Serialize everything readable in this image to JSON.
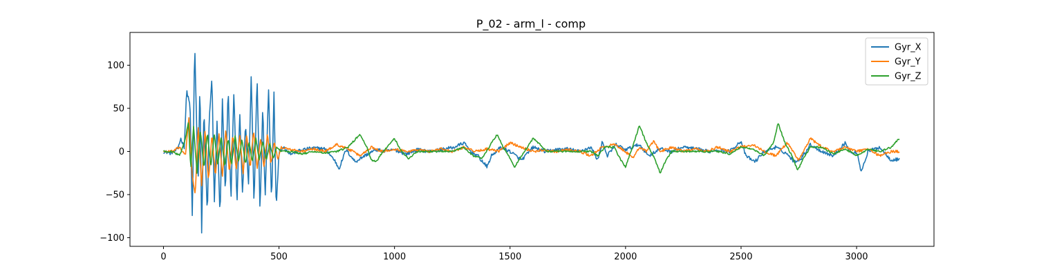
{
  "chart_data": {
    "type": "line",
    "title": "P_02 - arm_l - comp",
    "xlabel": "",
    "ylabel": "",
    "xlim": [
      -145,
      3335
    ],
    "ylim": [
      -110,
      138
    ],
    "xticks": [
      0,
      500,
      1000,
      1500,
      2000,
      2500,
      3000
    ],
    "yticks": [
      -100,
      -50,
      0,
      50,
      100
    ],
    "yticklabels": [
      "−100",
      "−50",
      "0",
      "50",
      "100"
    ],
    "grid": false,
    "legend": "top-right",
    "n_points": 3190,
    "colors": {
      "Gyr_X": "#1f77b4",
      "Gyr_Y": "#ff7f0e",
      "Gyr_Z": "#2ca02c"
    },
    "series": [
      {
        "name": "Gyr_X",
        "color": "#1f77b4",
        "points": [
          [
            0,
            0
          ],
          [
            30,
            -2
          ],
          [
            60,
            2
          ],
          [
            75,
            15
          ],
          [
            90,
            5
          ],
          [
            100,
            70
          ],
          [
            115,
            55
          ],
          [
            125,
            -80
          ],
          [
            135,
            126
          ],
          [
            150,
            -40
          ],
          [
            158,
            88
          ],
          [
            165,
            -98
          ],
          [
            175,
            50
          ],
          [
            190,
            -75
          ],
          [
            198,
            40
          ],
          [
            210,
            85
          ],
          [
            220,
            -60
          ],
          [
            232,
            35
          ],
          [
            245,
            -78
          ],
          [
            255,
            60
          ],
          [
            268,
            -50
          ],
          [
            280,
            75
          ],
          [
            292,
            -58
          ],
          [
            305,
            72
          ],
          [
            318,
            -62
          ],
          [
            330,
            45
          ],
          [
            342,
            -48
          ],
          [
            355,
            32
          ],
          [
            368,
            -40
          ],
          [
            380,
            90
          ],
          [
            392,
            -65
          ],
          [
            405,
            88
          ],
          [
            418,
            -70
          ],
          [
            430,
            55
          ],
          [
            440,
            -55
          ],
          [
            455,
            72
          ],
          [
            468,
            -60
          ],
          [
            478,
            70
          ],
          [
            488,
            -66
          ],
          [
            500,
            0
          ],
          [
            520,
            5
          ],
          [
            550,
            -3
          ],
          [
            600,
            2
          ],
          [
            650,
            4
          ],
          [
            700,
            3
          ],
          [
            740,
            -10
          ],
          [
            760,
            -20
          ],
          [
            790,
            2
          ],
          [
            830,
            -12
          ],
          [
            870,
            -5
          ],
          [
            920,
            2
          ],
          [
            960,
            0
          ],
          [
            1000,
            2
          ],
          [
            1050,
            -3
          ],
          [
            1100,
            2
          ],
          [
            1150,
            0
          ],
          [
            1200,
            2
          ],
          [
            1260,
            5
          ],
          [
            1300,
            10
          ],
          [
            1330,
            0
          ],
          [
            1360,
            -5
          ],
          [
            1400,
            -18
          ],
          [
            1420,
            -5
          ],
          [
            1460,
            5
          ],
          [
            1500,
            0
          ],
          [
            1550,
            -10
          ],
          [
            1600,
            5
          ],
          [
            1650,
            0
          ],
          [
            1700,
            2
          ],
          [
            1750,
            3
          ],
          [
            1800,
            0
          ],
          [
            1850,
            5
          ],
          [
            1880,
            -10
          ],
          [
            1900,
            12
          ],
          [
            1920,
            -5
          ],
          [
            1960,
            8
          ],
          [
            2000,
            2
          ],
          [
            2060,
            8
          ],
          [
            2100,
            -5
          ],
          [
            2150,
            3
          ],
          [
            2200,
            0
          ],
          [
            2250,
            5
          ],
          [
            2300,
            3
          ],
          [
            2360,
            0
          ],
          [
            2400,
            2
          ],
          [
            2450,
            0
          ],
          [
            2500,
            12
          ],
          [
            2520,
            -5
          ],
          [
            2560,
            -12
          ],
          [
            2600,
            0
          ],
          [
            2650,
            5
          ],
          [
            2700,
            -3
          ],
          [
            2730,
            -12
          ],
          [
            2760,
            -8
          ],
          [
            2800,
            8
          ],
          [
            2850,
            0
          ],
          [
            2900,
            -5
          ],
          [
            2950,
            10
          ],
          [
            2980,
            -3
          ],
          [
            3000,
            0
          ],
          [
            3020,
            -23
          ],
          [
            3050,
            0
          ],
          [
            3100,
            5
          ],
          [
            3150,
            -10
          ],
          [
            3185,
            -9
          ]
        ]
      },
      {
        "name": "Gyr_Y",
        "color": "#ff7f0e",
        "points": [
          [
            0,
            0
          ],
          [
            40,
            0
          ],
          [
            70,
            5
          ],
          [
            95,
            -5
          ],
          [
            110,
            40
          ],
          [
            125,
            -30
          ],
          [
            138,
            -50
          ],
          [
            150,
            30
          ],
          [
            165,
            -40
          ],
          [
            180,
            25
          ],
          [
            195,
            -35
          ],
          [
            210,
            20
          ],
          [
            225,
            -30
          ],
          [
            240,
            22
          ],
          [
            255,
            -28
          ],
          [
            270,
            25
          ],
          [
            285,
            -25
          ],
          [
            300,
            20
          ],
          [
            315,
            -22
          ],
          [
            330,
            18
          ],
          [
            345,
            -25
          ],
          [
            360,
            20
          ],
          [
            375,
            -20
          ],
          [
            390,
            25
          ],
          [
            405,
            -20
          ],
          [
            420,
            15
          ],
          [
            435,
            -18
          ],
          [
            450,
            20
          ],
          [
            465,
            -15
          ],
          [
            480,
            12
          ],
          [
            495,
            -10
          ],
          [
            510,
            5
          ],
          [
            550,
            2
          ],
          [
            600,
            0
          ],
          [
            650,
            3
          ],
          [
            700,
            0
          ],
          [
            750,
            8
          ],
          [
            800,
            3
          ],
          [
            850,
            -5
          ],
          [
            900,
            5
          ],
          [
            950,
            0
          ],
          [
            1000,
            3
          ],
          [
            1050,
            0
          ],
          [
            1100,
            2
          ],
          [
            1150,
            0
          ],
          [
            1200,
            3
          ],
          [
            1250,
            0
          ],
          [
            1300,
            5
          ],
          [
            1350,
            0
          ],
          [
            1400,
            3
          ],
          [
            1450,
            0
          ],
          [
            1500,
            10
          ],
          [
            1550,
            5
          ],
          [
            1600,
            0
          ],
          [
            1650,
            2
          ],
          [
            1700,
            0
          ],
          [
            1750,
            2
          ],
          [
            1800,
            0
          ],
          [
            1850,
            -5
          ],
          [
            1900,
            5
          ],
          [
            1950,
            8
          ],
          [
            2000,
            0
          ],
          [
            2030,
            -8
          ],
          [
            2060,
            5
          ],
          [
            2090,
            0
          ],
          [
            2120,
            12
          ],
          [
            2150,
            0
          ],
          [
            2200,
            5
          ],
          [
            2250,
            0
          ],
          [
            2300,
            3
          ],
          [
            2350,
            0
          ],
          [
            2400,
            5
          ],
          [
            2450,
            0
          ],
          [
            2500,
            5
          ],
          [
            2550,
            8
          ],
          [
            2600,
            0
          ],
          [
            2650,
            -5
          ],
          [
            2700,
            10
          ],
          [
            2750,
            -10
          ],
          [
            2800,
            15
          ],
          [
            2850,
            5
          ],
          [
            2900,
            0
          ],
          [
            2950,
            5
          ],
          [
            3000,
            0
          ],
          [
            3050,
            3
          ],
          [
            3100,
            -5
          ],
          [
            3150,
            0
          ],
          [
            3185,
            0
          ]
        ]
      },
      {
        "name": "Gyr_Z",
        "color": "#2ca02c",
        "points": [
          [
            0,
            0
          ],
          [
            40,
            0
          ],
          [
            70,
            -5
          ],
          [
            95,
            15
          ],
          [
            108,
            35
          ],
          [
            118,
            -20
          ],
          [
            130,
            30
          ],
          [
            145,
            -25
          ],
          [
            160,
            25
          ],
          [
            175,
            -20
          ],
          [
            190,
            22
          ],
          [
            205,
            -18
          ],
          [
            220,
            20
          ],
          [
            235,
            -15
          ],
          [
            250,
            18
          ],
          [
            265,
            -18
          ],
          [
            280,
            15
          ],
          [
            295,
            -15
          ],
          [
            310,
            18
          ],
          [
            325,
            -12
          ],
          [
            340,
            15
          ],
          [
            355,
            -15
          ],
          [
            370,
            12
          ],
          [
            385,
            -12
          ],
          [
            400,
            15
          ],
          [
            415,
            -10
          ],
          [
            430,
            12
          ],
          [
            445,
            -10
          ],
          [
            460,
            10
          ],
          [
            475,
            -8
          ],
          [
            490,
            5
          ],
          [
            510,
            0
          ],
          [
            560,
            0
          ],
          [
            600,
            -3
          ],
          [
            650,
            0
          ],
          [
            700,
            -2
          ],
          [
            750,
            0
          ],
          [
            800,
            5
          ],
          [
            850,
            20
          ],
          [
            880,
            5
          ],
          [
            900,
            -10
          ],
          [
            920,
            -12
          ],
          [
            950,
            0
          ],
          [
            1000,
            15
          ],
          [
            1030,
            0
          ],
          [
            1060,
            -8
          ],
          [
            1100,
            0
          ],
          [
            1150,
            0
          ],
          [
            1200,
            0
          ],
          [
            1250,
            0
          ],
          [
            1300,
            5
          ],
          [
            1340,
            -5
          ],
          [
            1380,
            -8
          ],
          [
            1420,
            10
          ],
          [
            1445,
            20
          ],
          [
            1470,
            5
          ],
          [
            1500,
            -8
          ],
          [
            1520,
            -18
          ],
          [
            1550,
            -5
          ],
          [
            1600,
            15
          ],
          [
            1630,
            8
          ],
          [
            1660,
            0
          ],
          [
            1700,
            0
          ],
          [
            1750,
            0
          ],
          [
            1800,
            0
          ],
          [
            1850,
            0
          ],
          [
            1880,
            -5
          ],
          [
            1910,
            5
          ],
          [
            1950,
            5
          ],
          [
            1980,
            -10
          ],
          [
            2000,
            -18
          ],
          [
            2030,
            5
          ],
          [
            2060,
            30
          ],
          [
            2090,
            10
          ],
          [
            2120,
            -5
          ],
          [
            2150,
            -25
          ],
          [
            2175,
            -10
          ],
          [
            2200,
            0
          ],
          [
            2250,
            0
          ],
          [
            2300,
            0
          ],
          [
            2350,
            0
          ],
          [
            2400,
            0
          ],
          [
            2450,
            -3
          ],
          [
            2500,
            5
          ],
          [
            2550,
            3
          ],
          [
            2600,
            -5
          ],
          [
            2640,
            10
          ],
          [
            2660,
            33
          ],
          [
            2690,
            10
          ],
          [
            2720,
            -5
          ],
          [
            2745,
            -22
          ],
          [
            2770,
            -8
          ],
          [
            2800,
            5
          ],
          [
            2850,
            5
          ],
          [
            2900,
            -3
          ],
          [
            2950,
            3
          ],
          [
            3000,
            -5
          ],
          [
            3050,
            3
          ],
          [
            3100,
            0
          ],
          [
            3150,
            5
          ],
          [
            3185,
            15
          ]
        ]
      }
    ]
  }
}
